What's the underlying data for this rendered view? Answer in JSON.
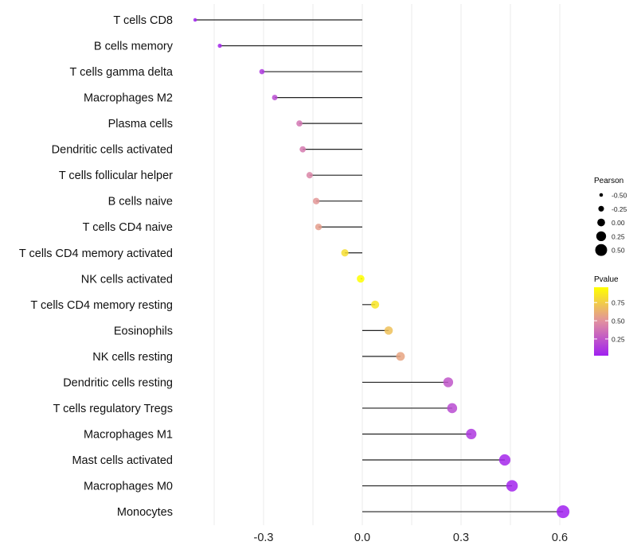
{
  "chart_data": {
    "type": "lollipop",
    "title": "",
    "xlabel": "",
    "ylabel": "",
    "xlim": [
      -0.53,
      0.63
    ],
    "xticks": [
      -0.3,
      0.0,
      0.3,
      0.6
    ],
    "xtick_labels": [
      "-0.3",
      "0.0",
      "0.3",
      "0.6"
    ],
    "grid": true,
    "categories": [
      "T cells CD8",
      "B cells memory",
      "T cells gamma delta",
      "Macrophages M2",
      "Plasma cells",
      "Dendritic cells activated",
      "T cells follicular helper",
      "B cells naive",
      "T cells CD4 naive",
      "T cells CD4 memory activated",
      "NK cells activated",
      "T cells CD4 memory resting",
      "Eosinophils",
      "NK cells resting",
      "Dendritic cells resting",
      "T cells regulatory  Tregs ",
      "Macrophages M1",
      "Mast cells activated",
      "Macrophages M0",
      "Monocytes"
    ],
    "pearson": [
      -0.508,
      -0.433,
      -0.305,
      -0.266,
      -0.191,
      -0.181,
      -0.16,
      -0.14,
      -0.133,
      -0.053,
      -0.005,
      0.039,
      0.08,
      0.116,
      0.261,
      0.273,
      0.331,
      0.433,
      0.455,
      0.61
    ],
    "pvalue": [
      0.03,
      0.05,
      0.12,
      0.2,
      0.38,
      0.4,
      0.45,
      0.52,
      0.55,
      0.82,
      0.98,
      0.85,
      0.7,
      0.58,
      0.25,
      0.2,
      0.12,
      0.05,
      0.04,
      0.01
    ],
    "legend": {
      "placement": "right",
      "size_title": "Pearson",
      "size_values": [
        -0.5,
        -0.25,
        0.0,
        0.25,
        0.5
      ],
      "size_labels": [
        "-0.50",
        "-0.25",
        "0.00",
        "0.25",
        "0.50"
      ],
      "color_title": "Pvalue",
      "color_range": [
        0.02,
        0.96
      ],
      "color_ticks": [
        0.25,
        0.5,
        0.75
      ],
      "color_labels": [
        "0.25",
        "0.50",
        "0.75"
      ],
      "color_low": "#a020f0",
      "color_mid": "#e18fa0",
      "color_high": "#ffff00"
    }
  }
}
